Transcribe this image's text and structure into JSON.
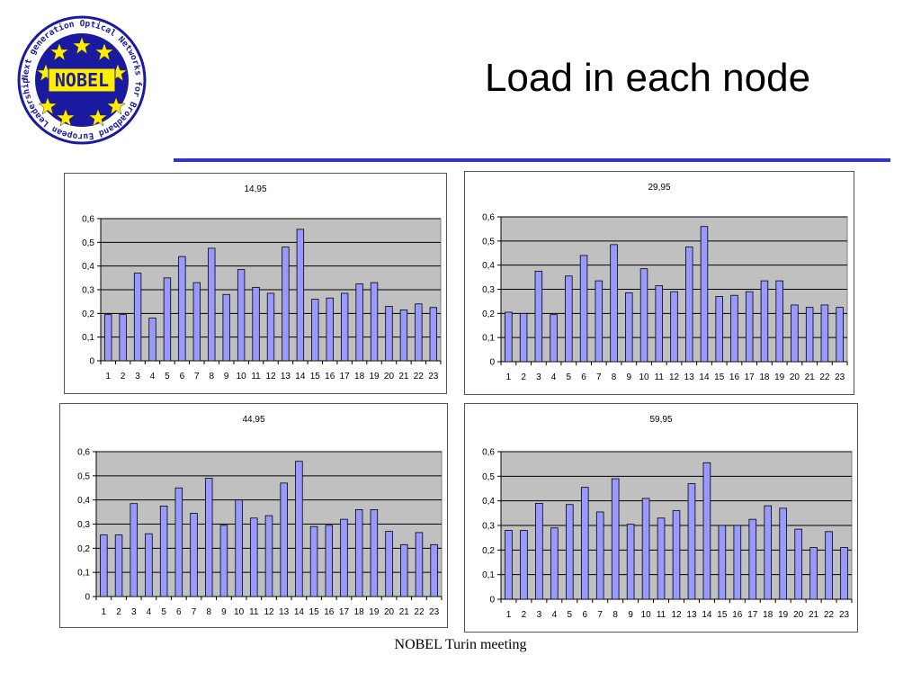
{
  "slide": {
    "title": "Load in each node",
    "footer": "NOBEL Turin  meeting",
    "logo": {
      "center_text": "NOBEL",
      "ring_text": "Next generation Optical Networks for Broadband European Leadership",
      "colors": {
        "ring": "#1a1aa0",
        "star": "#ffee00"
      }
    }
  },
  "colors": {
    "bar": "#9999ff",
    "plot_bg": "#c0c0c0",
    "rule": "#3333cc"
  },
  "chart_data": [
    {
      "type": "bar",
      "title": "14,95",
      "categories": [
        "1",
        "2",
        "3",
        "4",
        "5",
        "6",
        "7",
        "8",
        "9",
        "10",
        "11",
        "12",
        "13",
        "14",
        "15",
        "16",
        "17",
        "18",
        "19",
        "20",
        "21",
        "22",
        "23"
      ],
      "values": [
        0.195,
        0.195,
        0.37,
        0.18,
        0.35,
        0.44,
        0.33,
        0.475,
        0.28,
        0.385,
        0.31,
        0.285,
        0.48,
        0.555,
        0.26,
        0.265,
        0.285,
        0.325,
        0.33,
        0.23,
        0.215,
        0.24,
        0.225
      ],
      "ylim": [
        0,
        0.6
      ],
      "yticks": [
        "0",
        "0,1",
        "0,2",
        "0,3",
        "0,4",
        "0,5",
        "0,6"
      ],
      "grid": true,
      "legend": "none"
    },
    {
      "type": "bar",
      "title": "29,95",
      "categories": [
        "1",
        "2",
        "3",
        "4",
        "5",
        "6",
        "7",
        "8",
        "9",
        "10",
        "11",
        "12",
        "13",
        "14",
        "15",
        "16",
        "17",
        "18",
        "19",
        "20",
        "21",
        "22",
        "23"
      ],
      "values": [
        0.205,
        0.2,
        0.375,
        0.195,
        0.355,
        0.44,
        0.335,
        0.485,
        0.285,
        0.385,
        0.315,
        0.29,
        0.475,
        0.56,
        0.27,
        0.275,
        0.29,
        0.335,
        0.335,
        0.235,
        0.225,
        0.235,
        0.225
      ],
      "ylim": [
        0,
        0.6
      ],
      "yticks": [
        "0",
        "0,1",
        "0,2",
        "0,3",
        "0,4",
        "0,5",
        "0,6"
      ],
      "grid": true,
      "legend": "none"
    },
    {
      "type": "bar",
      "title": "44,95",
      "categories": [
        "1",
        "2",
        "3",
        "4",
        "5",
        "6",
        "7",
        "8",
        "9",
        "10",
        "11",
        "12",
        "13",
        "14",
        "15",
        "16",
        "17",
        "18",
        "19",
        "20",
        "21",
        "22",
        "23"
      ],
      "values": [
        0.255,
        0.255,
        0.385,
        0.26,
        0.375,
        0.45,
        0.345,
        0.49,
        0.295,
        0.4,
        0.325,
        0.335,
        0.47,
        0.56,
        0.29,
        0.295,
        0.32,
        0.36,
        0.36,
        0.27,
        0.215,
        0.265,
        0.215
      ],
      "ylim": [
        0,
        0.6
      ],
      "yticks": [
        "0",
        "0,1",
        "0,2",
        "0,3",
        "0,4",
        "0,5",
        "0,6"
      ],
      "grid": true,
      "legend": "none"
    },
    {
      "type": "bar",
      "title": "59,95",
      "categories": [
        "1",
        "2",
        "3",
        "4",
        "5",
        "6",
        "7",
        "8",
        "9",
        "10",
        "11",
        "12",
        "13",
        "14",
        "15",
        "16",
        "17",
        "18",
        "19",
        "20",
        "21",
        "22",
        "23"
      ],
      "values": [
        0.28,
        0.28,
        0.39,
        0.29,
        0.385,
        0.455,
        0.355,
        0.49,
        0.305,
        0.41,
        0.33,
        0.36,
        0.47,
        0.555,
        0.3,
        0.3,
        0.325,
        0.38,
        0.37,
        0.285,
        0.21,
        0.275,
        0.21
      ],
      "ylim": [
        0,
        0.6
      ],
      "yticks": [
        "0",
        "0,1",
        "0,2",
        "0,3",
        "0,4",
        "0,5",
        "0,6"
      ],
      "grid": true,
      "legend": "none"
    }
  ]
}
